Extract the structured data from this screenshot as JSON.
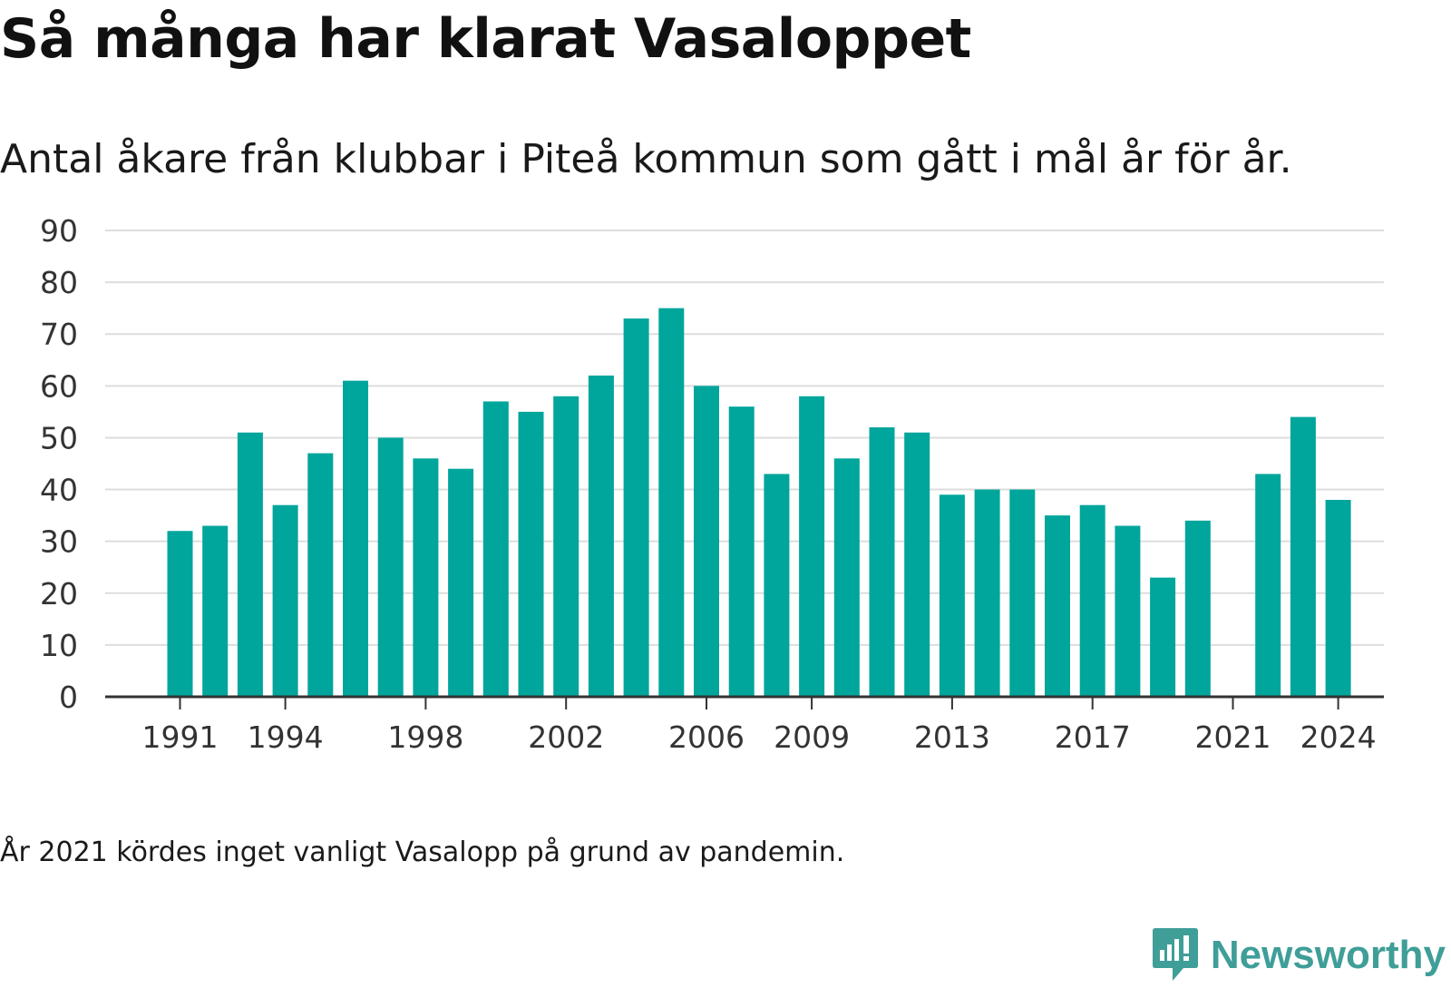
{
  "title": "Så många har klarat Vasaloppet",
  "subtitle": "Antal åkare från klubbar i Piteå kommun som gått i mål år för år.",
  "note": "År 2021 kördes inget vanligt Vasalopp på grund av pandemin.",
  "brand": {
    "name": "Newsworthy",
    "color": "#3f9e98",
    "icon": "newsworthy-logo-icon"
  },
  "colors": {
    "bar": "#00a59b",
    "grid": "#dddddd",
    "axis": "#333333"
  },
  "chart_data": {
    "type": "bar",
    "categories": [
      "1991",
      "1992",
      "1993",
      "1994",
      "1995",
      "1996",
      "1997",
      "1998",
      "1999",
      "2000",
      "2001",
      "2002",
      "2003",
      "2004",
      "2005",
      "2006",
      "2007",
      "2008",
      "2009",
      "2010",
      "2011",
      "2012",
      "2013",
      "2014",
      "2015",
      "2016",
      "2017",
      "2018",
      "2019",
      "2020",
      "2021",
      "2022",
      "2023",
      "2024"
    ],
    "values": [
      32,
      33,
      51,
      37,
      47,
      61,
      50,
      46,
      44,
      57,
      55,
      58,
      62,
      73,
      75,
      60,
      56,
      43,
      58,
      46,
      52,
      51,
      39,
      40,
      40,
      35,
      37,
      33,
      23,
      34,
      null,
      43,
      54,
      38
    ],
    "x_tick_labels": [
      "1991",
      "1994",
      "1998",
      "2002",
      "2006",
      "2009",
      "2013",
      "2017",
      "2021",
      "2024"
    ],
    "y_ticks": [
      0,
      10,
      20,
      30,
      40,
      50,
      60,
      70,
      80,
      90
    ],
    "ylim": [
      0,
      90
    ],
    "grid": true,
    "legend": "none"
  }
}
